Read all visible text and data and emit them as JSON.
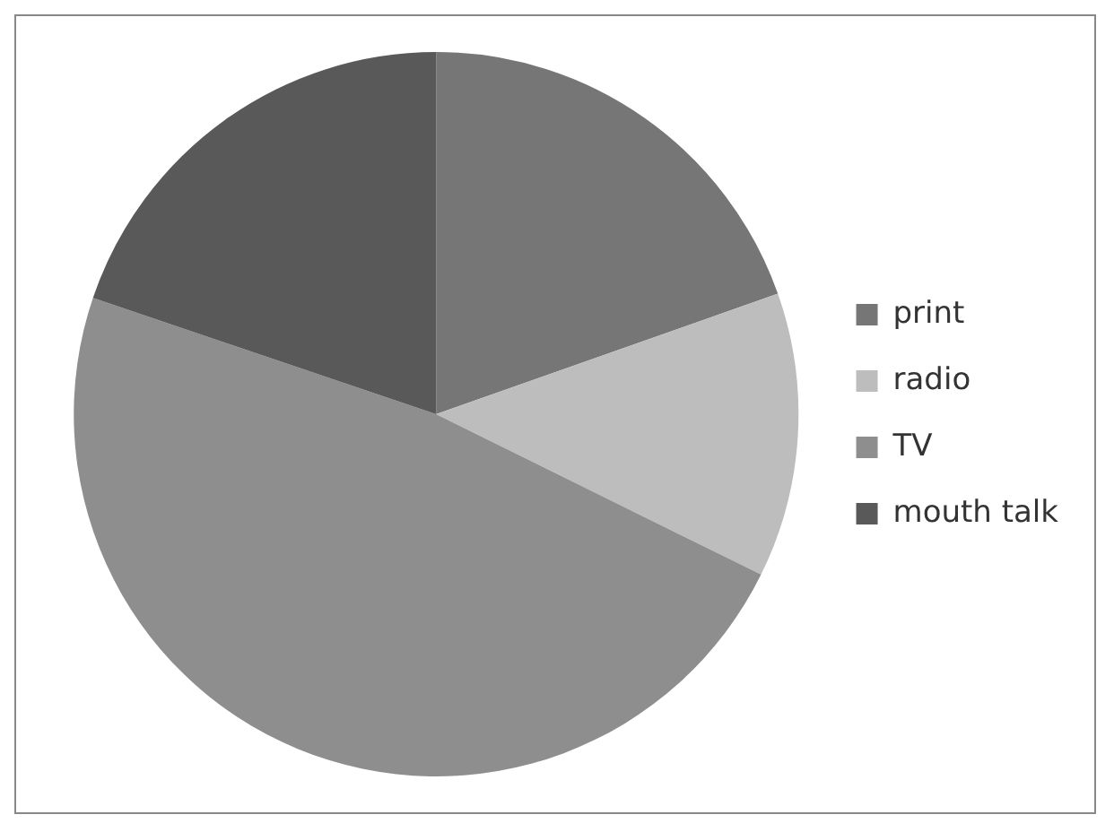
{
  "chart_data": {
    "type": "pie",
    "categories": [
      "print",
      "radio",
      "TV",
      "mouth talk"
    ],
    "values": [
      19.6,
      12.7,
      47.9,
      19.8
    ],
    "colors": [
      "#767676",
      "#bdbdbd",
      "#8e8e8e",
      "#595959"
    ],
    "legend": "right"
  }
}
